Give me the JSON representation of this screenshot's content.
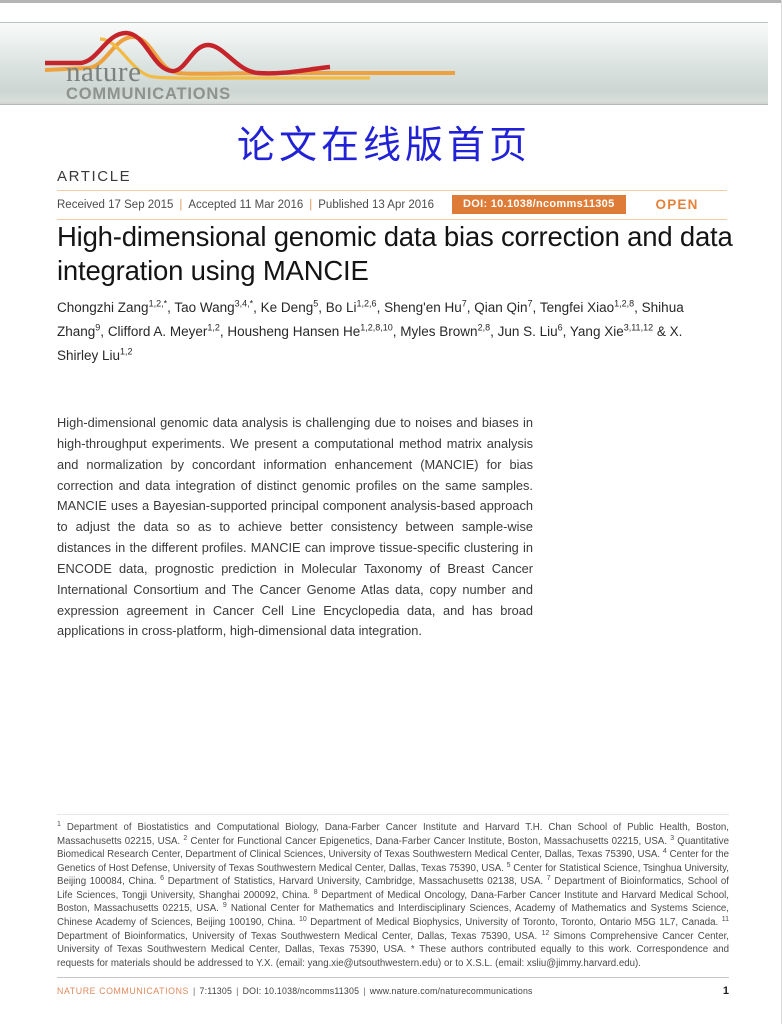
{
  "masthead": {
    "journal_name": "nature",
    "journal_subname": "COMMUNICATIONS"
  },
  "annotation": {
    "overlay_text": "论文在线版首页"
  },
  "article": {
    "kicker": "ARTICLE",
    "received": "Received 17 Sep 2015",
    "accepted": "Accepted 11 Mar 2016",
    "published": "Published 13 Apr 2016",
    "meta_separator": "|",
    "doi_badge": "DOI: 10.1038/ncomms11305",
    "open_label": "OPEN",
    "title": "High-dimensional genomic data bias correction and data integration using MANCIE",
    "authors": [
      {
        "name": "Chongzhi Zang",
        "sup": "1,2,*"
      },
      {
        "name": "Tao Wang",
        "sup": "3,4,*"
      },
      {
        "name": "Ke Deng",
        "sup": "5"
      },
      {
        "name": "Bo Li",
        "sup": "1,2,6"
      },
      {
        "name": "Sheng'en Hu",
        "sup": "7"
      },
      {
        "name": "Qian Qin",
        "sup": "7"
      },
      {
        "name": "Tengfei Xiao",
        "sup": "1,2,8"
      },
      {
        "name": "Shihua Zhang",
        "sup": "9"
      },
      {
        "name": "Clifford A. Meyer",
        "sup": "1,2"
      },
      {
        "name": "Housheng Hansen He",
        "sup": "1,2,8,10"
      },
      {
        "name": "Myles Brown",
        "sup": "2,8"
      },
      {
        "name": "Jun S. Liu",
        "sup": "6"
      },
      {
        "name": "Yang Xie",
        "sup": "3,11,12"
      },
      {
        "name": "X. Shirley Liu",
        "sup": "1,2"
      }
    ],
    "abstract": "High-dimensional genomic data analysis is challenging due to noises and biases in high-throughput experiments. We present a computational method matrix analysis and normalization by concordant information enhancement (MANCIE) for bias correction and data integration of distinct genomic profiles on the same samples. MANCIE uses a Bayesian-supported principal component analysis-based approach to adjust the data so as to achieve better consistency between sample-wise distances in the different profiles. MANCIE can improve tissue-specific clustering in ENCODE data, prognostic prediction in Molecular Taxonomy of Breast Cancer International Consortium and The Cancer Genome Atlas data, copy number and expression agreement in Cancer Cell Line Encyclopedia data, and has broad applications in cross-platform, high-dimensional data integration."
  },
  "footnotes": {
    "affiliations": [
      {
        "sup": "1",
        "text": "Department of Biostatistics and Computational Biology, Dana-Farber Cancer Institute and Harvard T.H. Chan School of Public Health, Boston, Massachusetts 02215, USA."
      },
      {
        "sup": "2",
        "text": "Center for Functional Cancer Epigenetics, Dana-Farber Cancer Institute, Boston, Massachusetts 02215, USA."
      },
      {
        "sup": "3",
        "text": "Quantitative Biomedical Research Center, Department of Clinical Sciences, University of Texas Southwestern Medical Center, Dallas, Texas 75390, USA."
      },
      {
        "sup": "4",
        "text": "Center for the Genetics of Host Defense, University of Texas Southwestern Medical Center, Dallas, Texas 75390, USA."
      },
      {
        "sup": "5",
        "text": "Center for Statistical Science, Tsinghua University, Beijing 100084, China."
      },
      {
        "sup": "6",
        "text": "Department of Statistics, Harvard University, Cambridge, Massachusetts 02138, USA."
      },
      {
        "sup": "7",
        "text": "Department of Bioinformatics, School of Life Sciences, Tongji University, Shanghai 200092, China."
      },
      {
        "sup": "8",
        "text": "Department of Medical Oncology, Dana-Farber Cancer Institute and Harvard Medical School, Boston, Massachusetts 02215, USA."
      },
      {
        "sup": "9",
        "text": "National Center for Mathematics and Interdisciplinary Sciences, Academy of Mathematics and Systems Science, Chinese Academy of Sciences, Beijing 100190, China."
      },
      {
        "sup": "10",
        "text": "Department of Medical Biophysics, University of Toronto, Toronto, Ontario M5G 1L7, Canada."
      },
      {
        "sup": "11",
        "text": "Department of Bioinformatics, University of Texas Southwestern Medical Center, Dallas, Texas 75390, USA."
      },
      {
        "sup": "12",
        "text": "Simons Comprehensive Cancer Center, University of Texas Southwestern Medical Center, Dallas, Texas 75390, USA."
      }
    ],
    "equal_contribution_note": "* These authors contributed equally to this work. Correspondence and requests for materials should be addressed to Y.X. (email: yang.xie@utsouthwestern.edu) or to X.S.L. (email: xsliu@jimmy.harvard.edu)."
  },
  "footer": {
    "journal": "NATURE COMMUNICATIONS",
    "separator": "|",
    "citation": "7:11305",
    "doi": "DOI: 10.1038/ncomms11305",
    "url": "www.nature.com/naturecommunications",
    "page_number": "1"
  },
  "colors": {
    "accent_orange": "#dd7b37",
    "open_orange": "#e4823c",
    "annotation_blue": "#2121d6",
    "banner_sage": "#ccd6d2",
    "logo_red": "#c5242b",
    "logo_orange": "#e9953e",
    "logo_yellow": "#f2bb43"
  }
}
